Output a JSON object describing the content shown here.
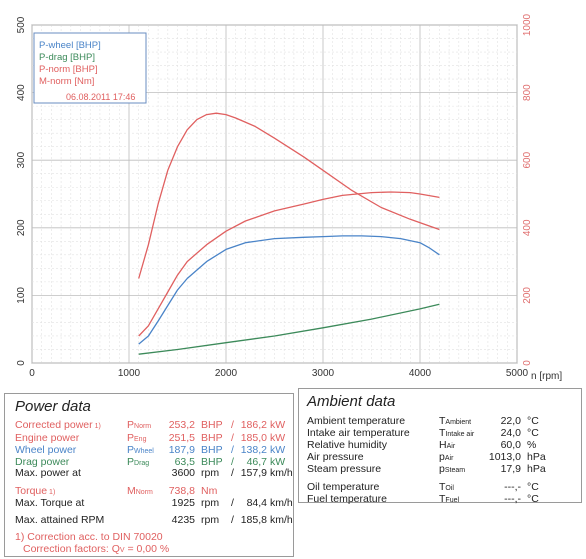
{
  "chart_data": {
    "type": "line",
    "title": "",
    "xlabel": "n [rpm]",
    "xlim": [
      0,
      5000
    ],
    "ylim_left": [
      0,
      500
    ],
    "ylim_right": [
      0,
      1000
    ],
    "x_ticks": [
      "0",
      "1000",
      "2000",
      "3000",
      "4000",
      "5000"
    ],
    "y_ticks_left": [
      "0",
      "100",
      "200",
      "300",
      "400",
      "500"
    ],
    "y_ticks_right": [
      "0",
      "200",
      "400",
      "600",
      "800",
      "1000"
    ],
    "grid": true,
    "legend_position": "top-left",
    "date": "06.08.2011 17:46",
    "legend": [
      {
        "label": "P-wheel [BHP]",
        "color": "#4a84c8"
      },
      {
        "label": "P-drag [BHP]",
        "color": "#3c8a5a"
      },
      {
        "label": "P-norm [BHP]",
        "color": "#e06060"
      },
      {
        "label": "M-norm [Nm]",
        "color": "#e06060"
      }
    ],
    "series": [
      {
        "name": "P-norm [BHP]",
        "axis": "left",
        "color": "#e06060",
        "x": [
          1100,
          1200,
          1300,
          1400,
          1500,
          1600,
          1800,
          2000,
          2200,
          2500,
          2800,
          3000,
          3200,
          3500,
          3700,
          3900,
          4000,
          4200
        ],
        "values": [
          40,
          55,
          80,
          105,
          130,
          150,
          175,
          195,
          210,
          225,
          235,
          242,
          248,
          252,
          253,
          252,
          250,
          245
        ]
      },
      {
        "name": "P-wheel [BHP]",
        "axis": "left",
        "color": "#4a84c8",
        "x": [
          1100,
          1200,
          1300,
          1400,
          1500,
          1600,
          1800,
          2000,
          2200,
          2500,
          2800,
          3000,
          3200,
          3400,
          3600,
          3800,
          4000,
          4100,
          4200
        ],
        "values": [
          28,
          40,
          62,
          85,
          108,
          125,
          150,
          168,
          178,
          184,
          186,
          187,
          188,
          188,
          187,
          184,
          178,
          170,
          160
        ]
      },
      {
        "name": "P-drag [BHP]",
        "axis": "left",
        "color": "#3c8a5a",
        "x": [
          1100,
          1500,
          2000,
          2500,
          3000,
          3500,
          4000,
          4200
        ],
        "values": [
          13,
          20,
          30,
          40,
          52,
          65,
          80,
          87
        ]
      },
      {
        "name": "M-norm [Nm]",
        "axis": "right",
        "color": "#e06060",
        "x": [
          1100,
          1200,
          1300,
          1400,
          1500,
          1600,
          1700,
          1800,
          1900,
          2000,
          2100,
          2300,
          2500,
          2800,
          3000,
          3300,
          3600,
          3900,
          4100,
          4200
        ],
        "values": [
          250,
          350,
          470,
          570,
          640,
          690,
          720,
          735,
          739,
          735,
          725,
          700,
          665,
          610,
          570,
          510,
          460,
          425,
          405,
          395
        ]
      }
    ]
  },
  "power": {
    "title": "Power data",
    "rows": [
      {
        "label": "Corrected power",
        "sup": "1)",
        "sym": "P",
        "sym_sub": "Norm",
        "v1": "253,2",
        "u1": "BHP",
        "sep": "/",
        "v2": "186,2",
        "u2": "kW",
        "style": "red"
      },
      {
        "label": "Engine power",
        "sup": "",
        "sym": "P",
        "sym_sub": "Eng",
        "v1": "251,5",
        "u1": "BHP",
        "sep": "/",
        "v2": "185,0",
        "u2": "kW",
        "style": "red"
      },
      {
        "label": "Wheel power",
        "sup": "",
        "sym": "P",
        "sym_sub": "Wheel",
        "v1": "187,9",
        "u1": "BHP",
        "sep": "/",
        "v2": "138,2",
        "u2": "kW",
        "style": "blue"
      },
      {
        "label": "Drag power",
        "sup": "",
        "sym": "P",
        "sym_sub": "Drag",
        "v1": "63,5",
        "u1": "BHP",
        "sep": "/",
        "v2": "46,7",
        "u2": "kW",
        "style": "green"
      },
      {
        "label": "Max. power at",
        "sup": "",
        "sym": "",
        "sym_sub": "",
        "v1": "3600",
        "u1": "rpm",
        "sep": "/",
        "v2": "157,9",
        "u2": "km/h",
        "style": "dark"
      },
      {
        "label": "Torque",
        "sup": "1)",
        "sym": "M",
        "sym_sub": "Norm",
        "v1": "738,8",
        "u1": "Nm",
        "sep": "",
        "v2": "",
        "u2": "",
        "style": "red"
      },
      {
        "label": "Max. Torque at",
        "sup": "",
        "sym": "",
        "sym_sub": "",
        "v1": "1925",
        "u1": "rpm",
        "sep": "/",
        "v2": "84,4",
        "u2": "km/h",
        "style": "dark"
      },
      {
        "label": "Max. attained RPM",
        "sup": "",
        "sym": "",
        "sym_sub": "",
        "v1": "4235",
        "u1": "rpm",
        "sep": "/",
        "v2": "185,8",
        "u2": "km/h",
        "style": "dark"
      }
    ],
    "footnote1": "1) Correction acc. to DIN 70020",
    "footnote2_label": "Correction factors: Q",
    "footnote2_sub": "V",
    "footnote2_value": " =   0,00 %"
  },
  "ambient": {
    "title": "Ambient data",
    "rows": [
      {
        "label": "Ambient temperature",
        "sym": "T",
        "sym_sub": "Ambient",
        "value": "22,0",
        "unit": "°C"
      },
      {
        "label": "Intake air temperature",
        "sym": "T",
        "sym_sub": "Intake air",
        "value": "24,0",
        "unit": "°C"
      },
      {
        "label": "Relative humidity",
        "sym": "H",
        "sym_sub": "Air",
        "value": "60,0",
        "unit": "%"
      },
      {
        "label": "Air pressure",
        "sym": "p",
        "sym_sub": "Air",
        "value": "1013,0",
        "unit": "hPa"
      },
      {
        "label": "Steam pressure",
        "sym": "p",
        "sym_sub": "Steam",
        "value": "17,9",
        "unit": "hPa"
      },
      {
        "label": "Oil temperature",
        "sym": "T",
        "sym_sub": "Oil",
        "value": "---,-",
        "unit": "°C"
      },
      {
        "label": "Fuel temperature",
        "sym": "T",
        "sym_sub": "Fuel",
        "value": "---,-",
        "unit": "°C"
      }
    ]
  }
}
